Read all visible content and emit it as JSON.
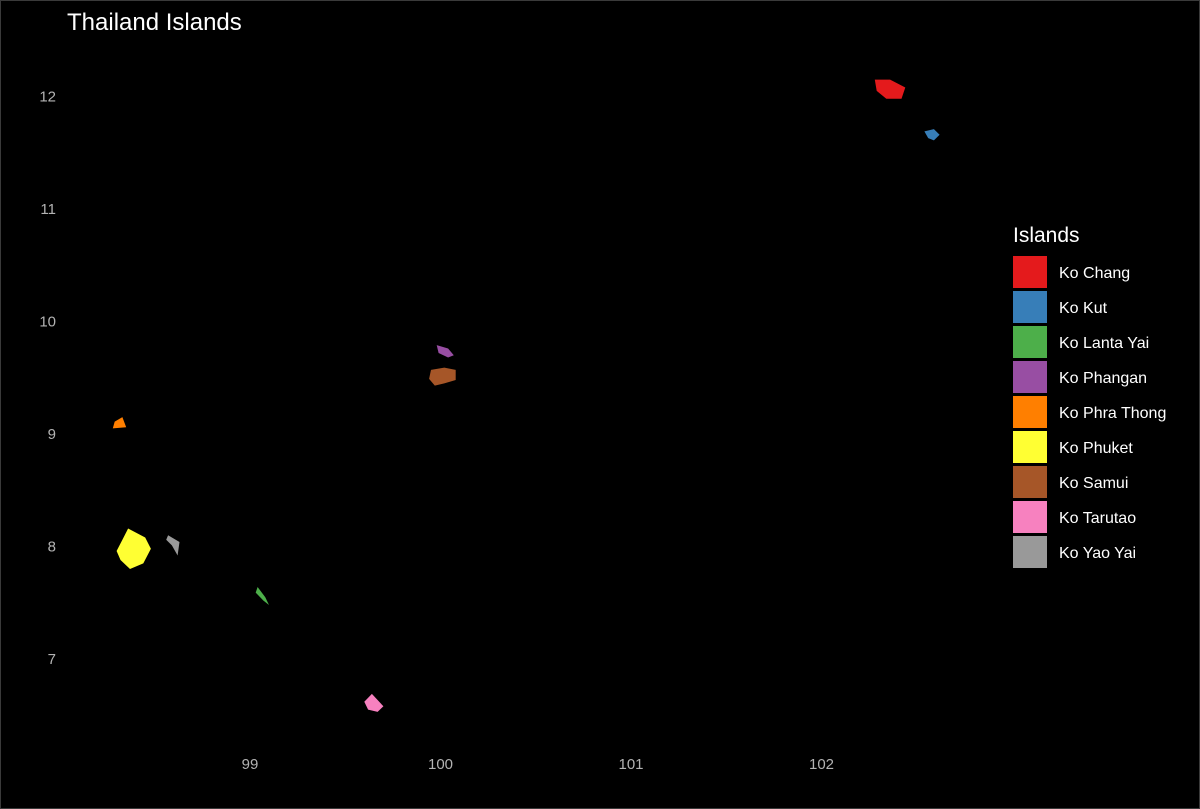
{
  "chart_data": {
    "type": "map",
    "title": "Thailand Islands",
    "xlabel": "",
    "ylabel": "",
    "xlim": [
      98.0,
      103.0
    ],
    "ylim": [
      6.3,
      12.3
    ],
    "x_ticks": [
      99,
      100,
      101,
      102
    ],
    "y_ticks": [
      7,
      8,
      9,
      10,
      11,
      12
    ],
    "grid": false,
    "legend": {
      "title": "Islands",
      "position": "right"
    },
    "islands": [
      {
        "name": "Ko Chang",
        "color": "#E41A1C",
        "outline": [
          [
            102.28,
            12.15
          ],
          [
            102.36,
            12.15
          ],
          [
            102.44,
            12.08
          ],
          [
            102.42,
            11.98
          ],
          [
            102.34,
            11.98
          ],
          [
            102.29,
            12.05
          ]
        ]
      },
      {
        "name": "Ko Kut",
        "color": "#377EB8",
        "outline": [
          [
            102.54,
            11.69
          ],
          [
            102.59,
            11.71
          ],
          [
            102.62,
            11.66
          ],
          [
            102.59,
            11.61
          ],
          [
            102.56,
            11.63
          ]
        ]
      },
      {
        "name": "Ko Lanta Yai",
        "color": "#4DAF4A",
        "outline": [
          [
            99.04,
            7.64
          ],
          [
            99.08,
            7.55
          ],
          [
            99.1,
            7.48
          ],
          [
            99.07,
            7.52
          ],
          [
            99.03,
            7.59
          ]
        ]
      },
      {
        "name": "Ko Phangan",
        "color": "#984EA3",
        "outline": [
          [
            99.98,
            9.79
          ],
          [
            100.04,
            9.76
          ],
          [
            100.07,
            9.7
          ],
          [
            100.04,
            9.68
          ],
          [
            99.99,
            9.72
          ]
        ]
      },
      {
        "name": "Ko Phra Thong",
        "color": "#FF7F00",
        "outline": [
          [
            98.29,
            9.11
          ],
          [
            98.33,
            9.15
          ],
          [
            98.35,
            9.06
          ],
          [
            98.28,
            9.05
          ]
        ]
      },
      {
        "name": "Ko Phuket",
        "color": "#FFFF33",
        "outline": [
          [
            98.36,
            8.16
          ],
          [
            98.45,
            8.08
          ],
          [
            98.48,
            7.98
          ],
          [
            98.44,
            7.85
          ],
          [
            98.37,
            7.8
          ],
          [
            98.32,
            7.88
          ],
          [
            98.3,
            7.96
          ],
          [
            98.33,
            8.06
          ]
        ]
      },
      {
        "name": "Ko Samui",
        "color": "#A65628",
        "outline": [
          [
            99.95,
            9.57
          ],
          [
            100.02,
            9.59
          ],
          [
            100.08,
            9.57
          ],
          [
            100.08,
            9.48
          ],
          [
            100.02,
            9.45
          ],
          [
            99.97,
            9.43
          ],
          [
            99.94,
            9.49
          ]
        ]
      },
      {
        "name": "Ko Tarutao",
        "color": "#F781BF",
        "outline": [
          [
            99.64,
            6.69
          ],
          [
            99.7,
            6.58
          ],
          [
            99.67,
            6.53
          ],
          [
            99.62,
            6.55
          ],
          [
            99.6,
            6.62
          ]
        ]
      },
      {
        "name": "Ko Yao Yai",
        "color": "#999999",
        "outline": [
          [
            98.57,
            8.1
          ],
          [
            98.63,
            8.04
          ],
          [
            98.62,
            7.92
          ],
          [
            98.59,
            8.01
          ],
          [
            98.56,
            8.06
          ]
        ]
      }
    ]
  }
}
